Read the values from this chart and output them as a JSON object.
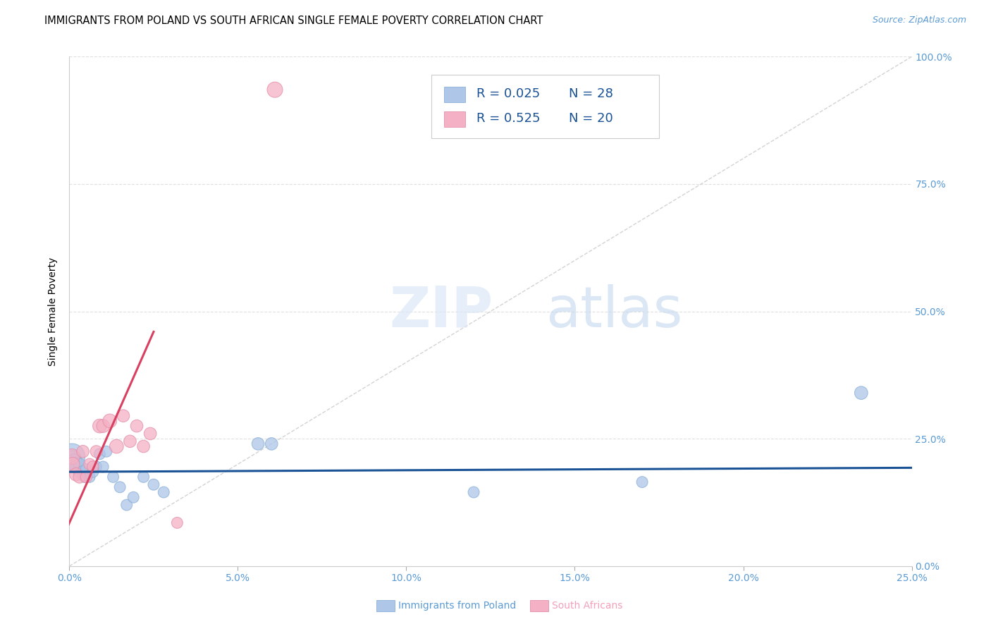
{
  "title": "IMMIGRANTS FROM POLAND VS SOUTH AFRICAN SINGLE FEMALE POVERTY CORRELATION CHART",
  "source": "Source: ZipAtlas.com",
  "ylabel": "Single Female Poverty",
  "watermark_zip": "ZIP",
  "watermark_atlas": "atlas",
  "legend_r1": "0.025",
  "legend_n1": "28",
  "legend_r2": "0.525",
  "legend_n2": "20",
  "legend_label1": "Immigrants from Poland",
  "legend_label2": "South Africans",
  "xlim": [
    0.0,
    0.25
  ],
  "ylim": [
    0.0,
    1.0
  ],
  "xticks": [
    0.0,
    0.05,
    0.1,
    0.15,
    0.2,
    0.25
  ],
  "yticks": [
    0.0,
    0.25,
    0.5,
    0.75,
    1.0
  ],
  "blue_scatter_x": [
    0.0008,
    0.001,
    0.0015,
    0.002,
    0.002,
    0.003,
    0.003,
    0.004,
    0.0045,
    0.005,
    0.006,
    0.007,
    0.008,
    0.009,
    0.01,
    0.011,
    0.013,
    0.015,
    0.017,
    0.019,
    0.022,
    0.025,
    0.028,
    0.056,
    0.06,
    0.12,
    0.17,
    0.235
  ],
  "blue_scatter_y": [
    0.215,
    0.21,
    0.205,
    0.2,
    0.195,
    0.185,
    0.2,
    0.185,
    0.175,
    0.19,
    0.175,
    0.185,
    0.195,
    0.22,
    0.195,
    0.225,
    0.175,
    0.155,
    0.12,
    0.135,
    0.175,
    0.16,
    0.145,
    0.24,
    0.24,
    0.145,
    0.165,
    0.34
  ],
  "blue_scatter_sizes": [
    700,
    300,
    250,
    200,
    180,
    160,
    150,
    140,
    130,
    130,
    130,
    130,
    130,
    130,
    130,
    130,
    130,
    130,
    130,
    130,
    130,
    130,
    130,
    160,
    160,
    130,
    130,
    180
  ],
  "pink_scatter_x": [
    0.0008,
    0.001,
    0.002,
    0.003,
    0.004,
    0.005,
    0.006,
    0.007,
    0.008,
    0.009,
    0.01,
    0.012,
    0.014,
    0.016,
    0.018,
    0.02,
    0.022,
    0.024,
    0.032,
    0.061
  ],
  "pink_scatter_y": [
    0.215,
    0.2,
    0.18,
    0.175,
    0.225,
    0.175,
    0.2,
    0.195,
    0.225,
    0.275,
    0.275,
    0.285,
    0.235,
    0.295,
    0.245,
    0.275,
    0.235,
    0.26,
    0.085,
    0.935
  ],
  "pink_scatter_sizes": [
    250,
    200,
    180,
    160,
    160,
    140,
    140,
    140,
    150,
    200,
    180,
    200,
    200,
    160,
    160,
    160,
    160,
    160,
    130,
    250
  ],
  "blue_line_x": [
    0.0,
    0.25
  ],
  "blue_line_y": [
    0.185,
    0.193
  ],
  "pink_line_x": [
    -0.002,
    0.025
  ],
  "pink_line_y": [
    0.055,
    0.46
  ],
  "diag_line_x": [
    0.0,
    0.25
  ],
  "diag_line_y": [
    0.0,
    1.0
  ],
  "blue_color": "#aec6e8",
  "pink_color": "#f4b0c4",
  "blue_edge_color": "#8ab0d8",
  "pink_edge_color": "#e490aa",
  "blue_line_color": "#1a5296",
  "pink_line_color": "#d94060",
  "diag_line_color": "#c8c8c8",
  "grid_color": "#e0e0e0",
  "tick_color": "#5b9bd5",
  "title_fontsize": 10.5,
  "axis_label_fontsize": 10,
  "tick_fontsize": 10,
  "legend_fontsize": 13,
  "source_fontsize": 9
}
